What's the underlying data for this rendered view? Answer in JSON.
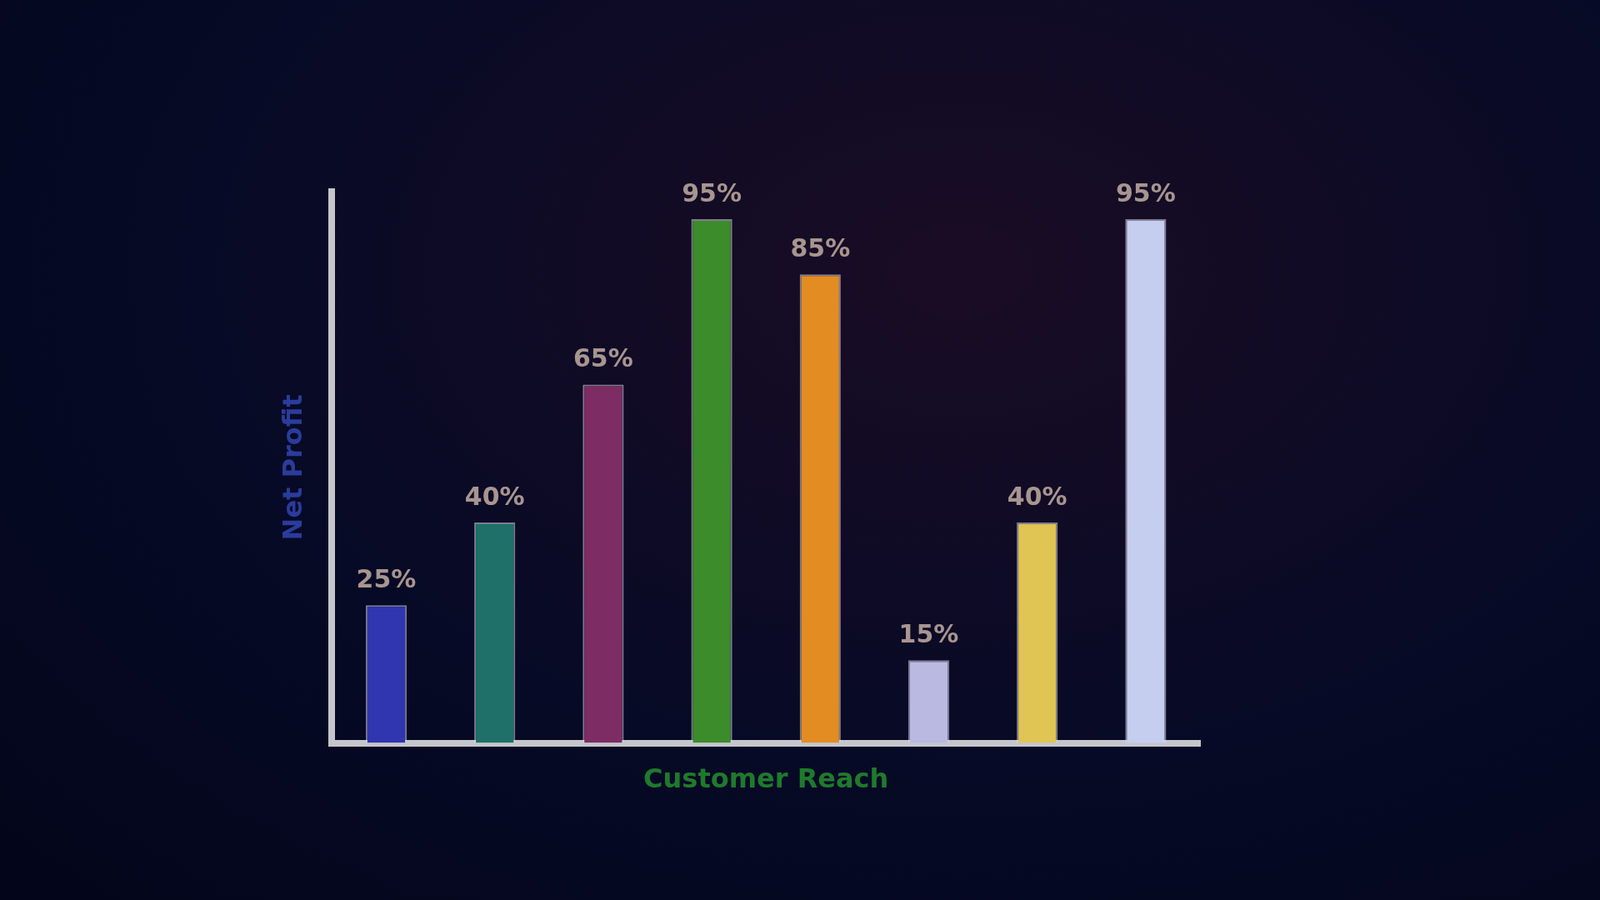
{
  "chart_data": {
    "type": "bar",
    "x_label": "Customer Reach",
    "y_label": "Net Profit",
    "categories": [
      null,
      null,
      null,
      null,
      null,
      null,
      null,
      null
    ],
    "values": [
      25,
      40,
      65,
      95,
      85,
      15,
      40,
      95
    ],
    "value_labels": [
      "25%",
      "40%",
      "65%",
      "95%",
      "85%",
      "15%",
      "40%",
      "95%"
    ],
    "colors": [
      "#3035b0",
      "#1f7068",
      "#7d2c64",
      "#3c8c2c",
      "#e28c22",
      "#b9b9e2",
      "#e0c454",
      "#c6cef0"
    ],
    "ylim": [
      0,
      100
    ],
    "data_labels": true,
    "tick_labels": false,
    "grid": false
  }
}
